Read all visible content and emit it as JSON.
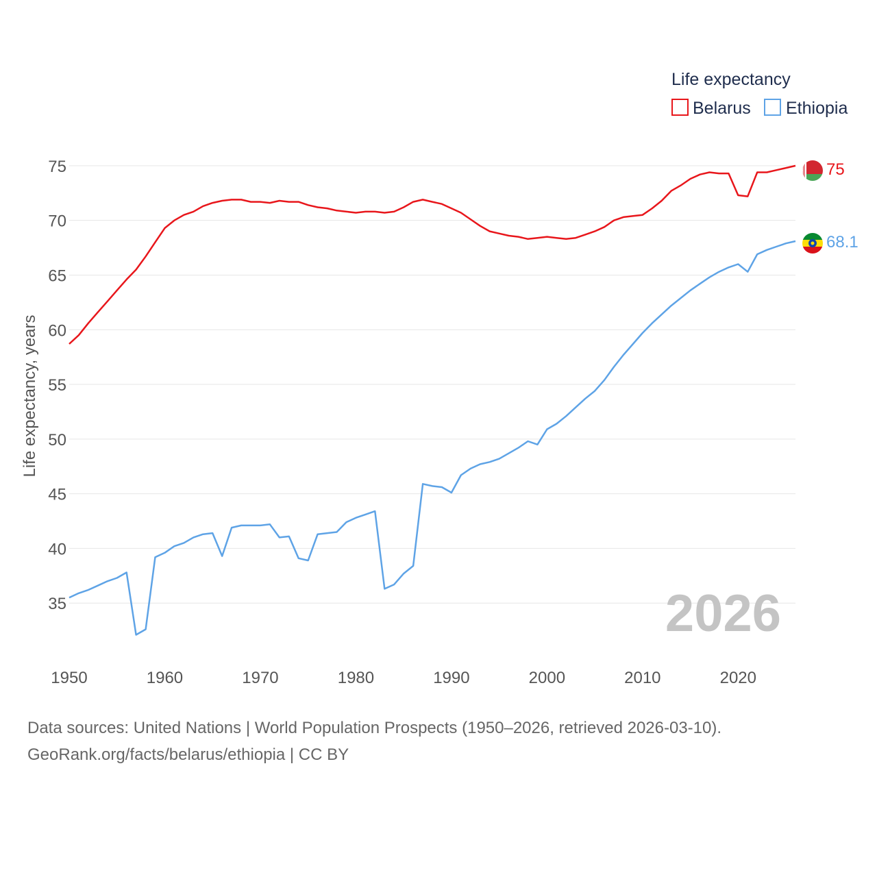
{
  "colors": {
    "belarus": "#e8161b",
    "ethiopia": "#5ea3e6",
    "grid": "#e6e6e6"
  },
  "legend": {
    "title": "Life expectancy",
    "items": [
      {
        "label": "Belarus",
        "color": "#e8161b"
      },
      {
        "label": "Ethiopia",
        "color": "#5ea3e6"
      }
    ]
  },
  "current_year": "2026",
  "source": {
    "line1": "Data sources: United Nations | World Population Prospects (1950–2026, retrieved 2026-03-10).",
    "line2": "GeoRank.org/facts/belarus/ethiopia | CC BY"
  },
  "chart_data": {
    "type": "line",
    "title": "Life expectancy",
    "xlabel": "",
    "ylabel": "Life expectancy, years",
    "xlim": [
      1950,
      2026
    ],
    "ylim": [
      30.5,
      77.5
    ],
    "xticks": [
      1950,
      1960,
      1970,
      1980,
      1990,
      2000,
      2010,
      2020
    ],
    "yticks": [
      35,
      40,
      45,
      50,
      55,
      60,
      65,
      70,
      75
    ],
    "grid": true,
    "legend_position": "top-right",
    "x": [
      1950,
      1951,
      1952,
      1953,
      1954,
      1955,
      1956,
      1957,
      1958,
      1959,
      1960,
      1961,
      1962,
      1963,
      1964,
      1965,
      1966,
      1967,
      1968,
      1969,
      1970,
      1971,
      1972,
      1973,
      1974,
      1975,
      1976,
      1977,
      1978,
      1979,
      1980,
      1981,
      1982,
      1983,
      1984,
      1985,
      1986,
      1987,
      1988,
      1989,
      1990,
      1991,
      1992,
      1993,
      1994,
      1995,
      1996,
      1997,
      1998,
      1999,
      2000,
      2001,
      2002,
      2003,
      2004,
      2005,
      2006,
      2007,
      2008,
      2009,
      2010,
      2011,
      2012,
      2013,
      2014,
      2015,
      2016,
      2017,
      2018,
      2019,
      2020,
      2021,
      2022,
      2023,
      2024,
      2025,
      2026
    ],
    "series": [
      {
        "name": "Belarus",
        "end_label": "75",
        "values": [
          58.7,
          59.5,
          60.6,
          61.6,
          62.6,
          63.6,
          64.6,
          65.5,
          66.7,
          68.0,
          69.3,
          70.0,
          70.5,
          70.8,
          71.3,
          71.6,
          71.8,
          71.9,
          71.9,
          71.7,
          71.7,
          71.6,
          71.8,
          71.7,
          71.7,
          71.4,
          71.2,
          71.1,
          70.9,
          70.8,
          70.7,
          70.8,
          70.8,
          70.7,
          70.8,
          71.2,
          71.7,
          71.9,
          71.7,
          71.5,
          71.1,
          70.7,
          70.1,
          69.5,
          69.0,
          68.8,
          68.6,
          68.5,
          68.3,
          68.4,
          68.5,
          68.4,
          68.3,
          68.4,
          68.7,
          69.0,
          69.4,
          70.0,
          70.3,
          70.4,
          70.5,
          71.1,
          71.8,
          72.7,
          73.2,
          73.8,
          74.2,
          74.4,
          74.3,
          74.3,
          72.3,
          72.2,
          74.4,
          74.4,
          74.6,
          74.8,
          75.0
        ]
      },
      {
        "name": "Ethiopia",
        "end_label": "68.1",
        "values": [
          35.5,
          35.9,
          36.2,
          36.6,
          37.0,
          37.3,
          37.8,
          32.1,
          32.6,
          39.2,
          39.6,
          40.2,
          40.5,
          41.0,
          41.3,
          41.4,
          39.3,
          41.9,
          42.1,
          42.1,
          42.1,
          42.2,
          41.0,
          41.1,
          39.1,
          38.9,
          41.3,
          41.4,
          41.5,
          42.4,
          42.8,
          43.1,
          43.4,
          36.3,
          36.7,
          37.7,
          38.4,
          45.9,
          45.7,
          45.6,
          45.1,
          46.7,
          47.3,
          47.7,
          47.9,
          48.2,
          48.7,
          49.2,
          49.8,
          49.5,
          50.9,
          51.4,
          52.1,
          52.9,
          53.7,
          54.4,
          55.4,
          56.6,
          57.7,
          58.7,
          59.7,
          60.6,
          61.4,
          62.2,
          62.9,
          63.6,
          64.2,
          64.8,
          65.3,
          65.7,
          66.0,
          65.3,
          66.9,
          67.3,
          67.6,
          67.9,
          68.1
        ]
      }
    ]
  }
}
